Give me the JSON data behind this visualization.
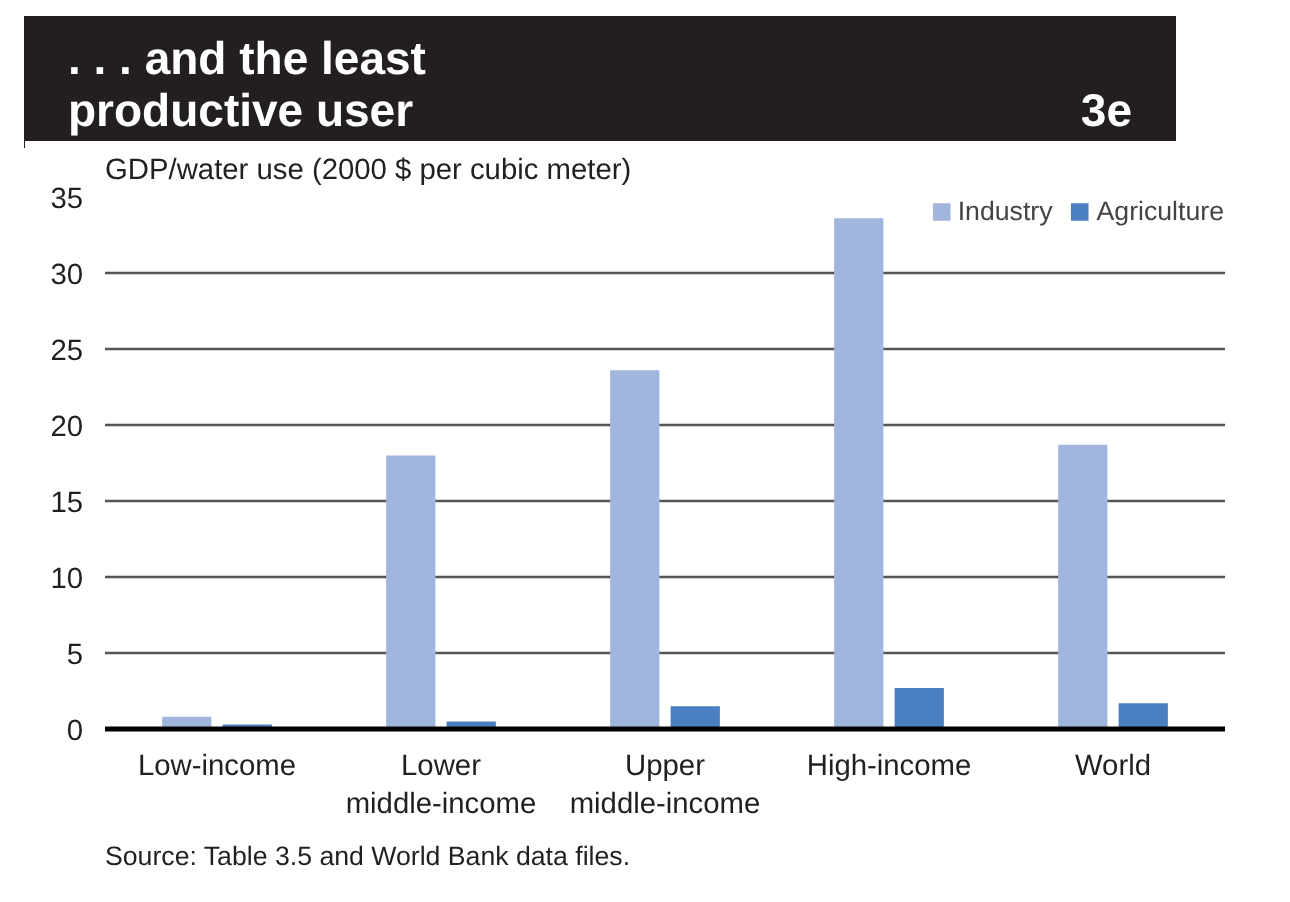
{
  "chart_data": {
    "type": "bar",
    "title": ". . . and the least productive user",
    "subtitle": "3e",
    "ylabel": "GDP/water use (2000 $ per cubic meter)",
    "categories": [
      "Low-income",
      "Lower\nmiddle-income",
      "Upper\nmiddle-income",
      "High-income",
      "World"
    ],
    "series": [
      {
        "name": "Industry",
        "color": "#a1b6dd",
        "values": [
          0.8,
          18.0,
          23.6,
          33.6,
          18.7
        ]
      },
      {
        "name": "Agriculture",
        "color": "#4a80c2",
        "values": [
          0.3,
          0.5,
          1.5,
          2.7,
          1.7
        ]
      }
    ],
    "ylim": [
      0,
      35
    ],
    "yticks": [
      0,
      5,
      10,
      15,
      20,
      25,
      30,
      35
    ],
    "grid": "y",
    "legend": "top right",
    "annotations": [
      "Source: Table 3.5 and World Bank data files."
    ]
  }
}
